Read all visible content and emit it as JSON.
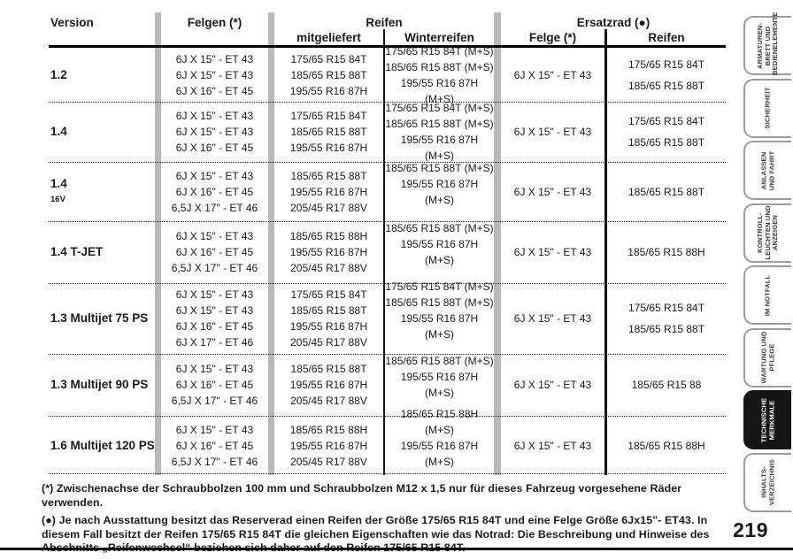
{
  "table": {
    "header": {
      "version": "Version",
      "felgen": "Felgen (*)",
      "reifen_group": "Reifen",
      "mitgeliefert": "mitgeliefert",
      "winterreifen": "Winterreifen",
      "ersatzrad_group": "Ersatzrad (●)",
      "ersatz_felge": "Felge (*)",
      "ersatz_reifen": "Reifen"
    },
    "rows": [
      {
        "version": "1.2",
        "version_small": "",
        "felgen": [
          "6J X 15\" - ET 43",
          "6J X 15\" - ET 43",
          "6J X 16\" - ET 45"
        ],
        "mitgeliefert": [
          "175/65 R15 84T",
          "185/65 R15 88T",
          "195/55 R16 87H"
        ],
        "winterreifen": [
          "175/65 R15 84T (M+S)",
          "185/65 R15 88T (M+S)",
          "195/55 R16 87H (M+S)"
        ],
        "ersatz_felge": "6J X 15\" - ET 43",
        "ersatz_reifen": [
          "175/65 R15 84T",
          "185/65 R15 88T"
        ]
      },
      {
        "version": "1.4",
        "version_small": "",
        "felgen": [
          "6J X 15\" - ET 43",
          "6J X 15\" - ET 43",
          "6J X 16\" - ET 45"
        ],
        "mitgeliefert": [
          "175/65 R15 84T",
          "185/65 R15 88T",
          "195/55 R16 87H"
        ],
        "winterreifen": [
          "175/65 R15 84T (M+S)",
          "185/65 R15 88T (M+S)",
          "195/55 R16 87H (M+S)"
        ],
        "ersatz_felge": "6J X 15\" - ET 43",
        "ersatz_reifen": [
          "175/65 R15 84T",
          "185/65 R15 88T"
        ]
      },
      {
        "version": "1.4",
        "version_small": "16V",
        "felgen": [
          "6J X 15\" - ET 43",
          "6J X 16\" - ET 45",
          "6,5J X 17\" - ET 46"
        ],
        "mitgeliefert": [
          "185/65 R15 88T",
          "195/55 R16 87H",
          "205/45 R17 88V"
        ],
        "winterreifen": [
          "185/65 R15 88T (M+S)",
          "195/55 R16 87H (M+S)",
          ""
        ],
        "ersatz_felge": "6J X 15\" - ET 43",
        "ersatz_reifen": [
          "185/65 R15 88T"
        ]
      },
      {
        "version": "1.4 T-JET",
        "version_small": "",
        "felgen": [
          "6J X 15\" - ET 43",
          "6J X 16\" - ET 45",
          "6,5J X 17\" - ET 46"
        ],
        "mitgeliefert": [
          "185/65 R15 88H",
          "195/55 R16 87H",
          "205/45 R17 88V"
        ],
        "winterreifen": [
          "185/65 R15 88T (M+S)",
          "195/55 R16 87H (M+S)",
          ""
        ],
        "ersatz_felge": "6J X 15\" - ET 43",
        "ersatz_reifen": [
          "185/65 R15 88H"
        ]
      },
      {
        "version": "1.3 Multijet 75 PS",
        "version_small": "",
        "felgen": [
          "6J X 15\" - ET 43",
          "6J X 15\" - ET 43",
          "6J X 16\" - ET 45",
          "6J X 17\" - ET 46"
        ],
        "mitgeliefert": [
          "175/65 R15 84T",
          "185/65 R15 88T",
          "195/55 R16 87H",
          "205/45 R17 88V"
        ],
        "winterreifen": [
          "175/65 R15 84T (M+S)",
          "185/65 R15 88T (M+S)",
          "195/55 R16 87H (M+S)",
          ""
        ],
        "ersatz_felge": "6J X 15\" - ET 43",
        "ersatz_reifen": [
          "175/65 R15 84T",
          "185/65 R15 88T"
        ]
      },
      {
        "version": "1.3 Multijet 90 PS",
        "version_small": "",
        "felgen": [
          "6J X 15\" - ET 43",
          "6J X 16\" - ET 45",
          "6,5J X 17\" - ET 46"
        ],
        "mitgeliefert": [
          "185/65 R15 88T",
          "195/55 R16 87H",
          "205/45 R17 88V"
        ],
        "winterreifen": [
          "185/65 R15 88T (M+S)",
          "195/55 R16 87H (M+S)",
          ""
        ],
        "ersatz_felge": "6J X 15\" - ET 43",
        "ersatz_reifen": [
          "185/65 R15 88"
        ]
      },
      {
        "version": "1.6 Multijet 120 PS",
        "version_small": "",
        "felgen": [
          "6J X 15\" - ET 43",
          "6J X 16\" - ET 45",
          "6,5J X 17\" - ET 46"
        ],
        "mitgeliefert": [
          "185/65 R15 88H",
          "195/55 R16 87H",
          "205/45 R17 88V"
        ],
        "winterreifen": [
          "185/65 R15 88H (M+S)",
          "195/55 R16 87H (M+S)",
          ""
        ],
        "ersatz_felge": "6J X 15\" - ET 43",
        "ersatz_reifen": [
          "185/65 R15 88H"
        ]
      }
    ]
  },
  "footnotes": [
    "(*) Zwischenachse der Schraubbolzen 100 mm und Schraubbolzen M12 x 1,5 nur für dieses Fahrzeug vorgesehene Räder verwenden.",
    "(●) Je nach Ausstattung besitzt das Reserverad einen Reifen der Größe 175/65 R15 84T und eine Felge Größe 6Jx15\"- ET43. In diesem Fall besitzt der Reifen 175/65 R15 84T die gleichen Eigenschaften wie das Notrad: Die Beschreibung und Hinweise des Abschnitts „Reifenwechsel“ beziehen sich daher auf den Reifen 175/65 R15 84T."
  ],
  "sidebar": {
    "tabs": [
      {
        "lines": [
          "ARMATUREN-",
          "BRETT UND",
          "BEDIENELEMENTE"
        ],
        "active": false
      },
      {
        "lines": [
          "SICHERHEIT"
        ],
        "active": false
      },
      {
        "lines": [
          "ANLASSEN",
          "UND FAHRT"
        ],
        "active": false
      },
      {
        "lines": [
          "KONTROLL-",
          "LEUCHTEN UND",
          "ANZEIGEN"
        ],
        "active": false
      },
      {
        "lines": [
          "IM NOTFALL"
        ],
        "active": false
      },
      {
        "lines": [
          "WARTUNG UND",
          "PFLEGE"
        ],
        "active": false
      },
      {
        "lines": [
          "TECHNISCHE",
          "MERKMALE"
        ],
        "active": true
      },
      {
        "lines": [
          "INHALTS-",
          "VERZEICHNIS"
        ],
        "active": false
      }
    ]
  },
  "page_number": "219",
  "colors": {
    "column_bar": "#b9b9b9",
    "active_tab": "#151515",
    "rule": "#000000"
  }
}
